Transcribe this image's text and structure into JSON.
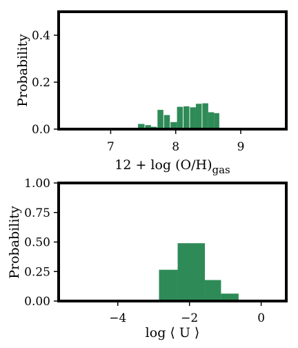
{
  "chart_data": [
    {
      "type": "bar",
      "ylabel": "Probability",
      "xlabel": "12 + log (O/H)",
      "xlabel_subscript": "gas",
      "xlim": [
        6.2,
        9.7
      ],
      "ylim": [
        0.0,
        0.5
      ],
      "xticks": [
        7,
        8,
        9
      ],
      "xtick_labels": [
        "7",
        "8",
        "9"
      ],
      "yticks": [
        0.0,
        0.2,
        0.4
      ],
      "ytick_labels": [
        "0.0",
        "0.2",
        "0.4"
      ],
      "bar_color": "#2e8b57",
      "bins": [
        {
          "x0": 7.42,
          "x1": 7.52,
          "value": 0.022
        },
        {
          "x0": 7.53,
          "x1": 7.62,
          "value": 0.017
        },
        {
          "x0": 7.62,
          "x1": 7.71,
          "value": 0.01
        },
        {
          "x0": 7.72,
          "x1": 7.81,
          "value": 0.082
        },
        {
          "x0": 7.82,
          "x1": 7.91,
          "value": 0.06
        },
        {
          "x0": 7.92,
          "x1": 8.02,
          "value": 0.03
        },
        {
          "x0": 8.02,
          "x1": 8.11,
          "value": 0.095
        },
        {
          "x0": 8.12,
          "x1": 8.21,
          "value": 0.097
        },
        {
          "x0": 8.22,
          "x1": 8.31,
          "value": 0.093
        },
        {
          "x0": 8.31,
          "x1": 8.4,
          "value": 0.108
        },
        {
          "x0": 8.41,
          "x1": 8.5,
          "value": 0.11
        },
        {
          "x0": 8.5,
          "x1": 8.59,
          "value": 0.072
        },
        {
          "x0": 8.59,
          "x1": 8.67,
          "value": 0.068
        }
      ]
    },
    {
      "type": "bar",
      "ylabel": "Probability",
      "xlabel": "log ⟨ U ⟩",
      "xlim": [
        -5.65,
        0.7
      ],
      "ylim": [
        0.0,
        1.0
      ],
      "xticks": [
        -4,
        -2,
        0
      ],
      "xtick_labels": [
        "−4",
        "−2",
        "0"
      ],
      "yticks": [
        0.0,
        0.25,
        0.5,
        0.75,
        1.0
      ],
      "ytick_labels": [
        "0.00",
        "0.25",
        "0.50",
        "0.75",
        "1.00"
      ],
      "bar_color": "#2e8b57",
      "bins": [
        {
          "x0": -2.85,
          "x1": -2.33,
          "value": 0.265
        },
        {
          "x0": -2.33,
          "x1": -1.57,
          "value": 0.49
        },
        {
          "x0": -1.57,
          "x1": -1.12,
          "value": 0.178
        },
        {
          "x0": -1.12,
          "x1": -0.63,
          "value": 0.063
        }
      ]
    }
  ]
}
